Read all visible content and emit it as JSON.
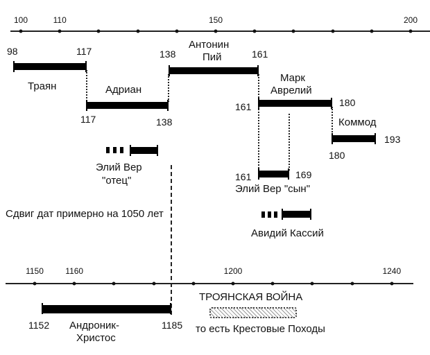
{
  "top_axis": {
    "ticks": [
      {
        "year": 100,
        "label": "100"
      },
      {
        "year": 110,
        "label": "110"
      },
      {
        "year": 120,
        "label": ""
      },
      {
        "year": 130,
        "label": ""
      },
      {
        "year": 140,
        "label": ""
      },
      {
        "year": 150,
        "label": "150"
      },
      {
        "year": 160,
        "label": ""
      },
      {
        "year": 170,
        "label": ""
      },
      {
        "year": 180,
        "label": ""
      },
      {
        "year": 190,
        "label": ""
      },
      {
        "year": 200,
        "label": "200"
      }
    ]
  },
  "bottom_axis": {
    "ticks": [
      {
        "year": 1150,
        "label": "1150"
      },
      {
        "year": 1160,
        "label": "1160"
      },
      {
        "year": 1170,
        "label": ""
      },
      {
        "year": 1180,
        "label": ""
      },
      {
        "year": 1190,
        "label": ""
      },
      {
        "year": 1200,
        "label": "1200"
      },
      {
        "year": 1210,
        "label": ""
      },
      {
        "year": 1220,
        "label": ""
      },
      {
        "year": 1230,
        "label": ""
      },
      {
        "year": 1240,
        "label": "1240"
      }
    ]
  },
  "rulers": {
    "trajan": {
      "name": "Траян",
      "start": "98",
      "end": "117"
    },
    "hadrian": {
      "name": "Адриан",
      "start": "117",
      "end": "138"
    },
    "antoninus": {
      "name_line1": "Антонин",
      "name_line2": "Пий",
      "start": "138",
      "end": "161"
    },
    "marcus": {
      "name_line1": "Марк",
      "name_line2": "Аврелий",
      "start": "161",
      "end": "180"
    },
    "commodus": {
      "name": "Коммод",
      "start": "180",
      "end": "193"
    },
    "aelius_father": {
      "name_line1": "Элий Вер",
      "name_line2": "\"отец\""
    },
    "aelius_son": {
      "name": "Элий Вер \"сын\"",
      "start": "161",
      "end": "169"
    },
    "avidius": {
      "name": "Авидий Кассий"
    },
    "andronicus": {
      "name_line1": "Андроник-",
      "name_line2": "Христос",
      "start": "1152",
      "end": "1185"
    }
  },
  "labels": {
    "shift": "Сдвиг дат примерно на 1050 лет",
    "trojan_war": "ТРОЯНСКАЯ ВОЙНА",
    "crusades": "то есть Крестовые Походы"
  }
}
